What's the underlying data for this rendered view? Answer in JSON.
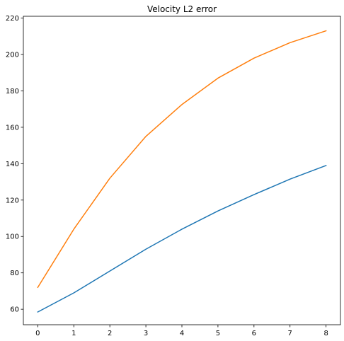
{
  "chart_data": {
    "type": "line",
    "title": "Velocity L2 error",
    "xlabel": "",
    "ylabel": "",
    "x": [
      0,
      1,
      2,
      3,
      4,
      5,
      6,
      7,
      8
    ],
    "xlim": [
      -0.4,
      8.4
    ],
    "ylim": [
      51.5,
      221
    ],
    "xticks": [
      0,
      1,
      2,
      3,
      4,
      5,
      6,
      7,
      8
    ],
    "yticks": [
      60,
      80,
      100,
      120,
      140,
      160,
      180,
      200,
      220
    ],
    "grid": false,
    "series": [
      {
        "color": "#1f77b4",
        "values": [
          58.5,
          69,
          81,
          93,
          104,
          114,
          123,
          131.5,
          139
        ]
      },
      {
        "color": "#ff7f0e",
        "values": [
          72,
          104,
          132,
          155,
          172.5,
          187,
          198,
          206.5,
          213
        ]
      }
    ]
  }
}
